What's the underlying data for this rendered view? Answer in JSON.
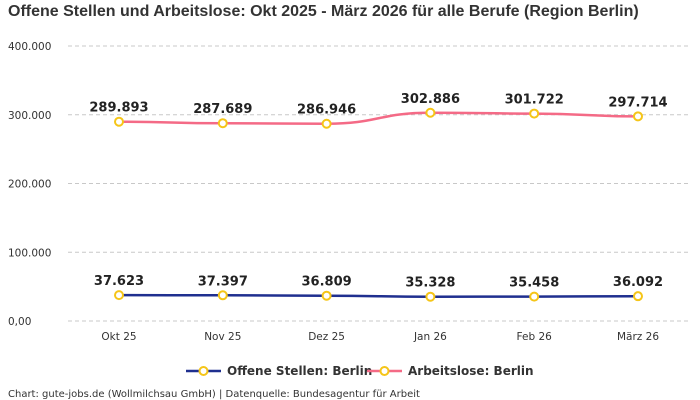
{
  "chart_data": {
    "type": "line",
    "title": "Offene Stellen und Arbeitslose: Okt 2025 - März 2026 für alle Berufe (Region Berlin)",
    "categories": [
      "Okt 25",
      "Nov 25",
      "Dez 25",
      "Jan 26",
      "Feb 26",
      "März 26"
    ],
    "yticks": [
      0,
      100000,
      200000,
      300000,
      400000
    ],
    "ytick_labels": [
      "0,00",
      "100.000",
      "200.000",
      "300.000",
      "400.000"
    ],
    "ylim": [
      0,
      400000
    ],
    "grid": true,
    "legend_position": "bottom",
    "series": [
      {
        "name": "Offene Stellen: Berlin",
        "color": "#1f2f8f",
        "marker_color": "#f5c518",
        "values": [
          37623,
          37397,
          36809,
          35328,
          35458,
          36092
        ],
        "labels": [
          "37.623",
          "37.397",
          "36.809",
          "35.328",
          "35.458",
          "36.092"
        ]
      },
      {
        "name": "Arbeitslose: Berlin",
        "color": "#f46a86",
        "marker_color": "#f5c518",
        "values": [
          289893,
          287689,
          286946,
          302886,
          301722,
          297714
        ],
        "labels": [
          "289.893",
          "287.689",
          "286.946",
          "302.886",
          "301.722",
          "297.714"
        ]
      }
    ]
  },
  "credit": "Chart: gute-jobs.de (Wollmilchsau GmbH) | Datenquelle: Bundesagentur für Arbeit"
}
